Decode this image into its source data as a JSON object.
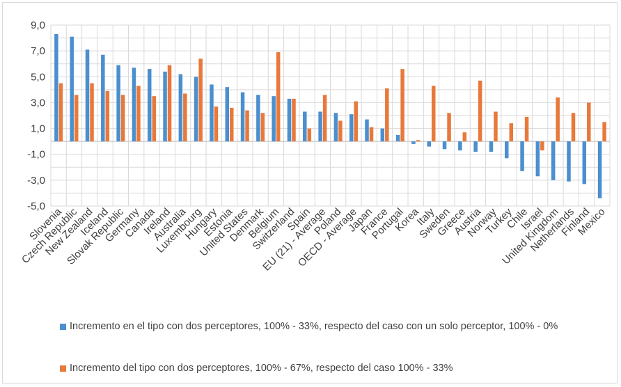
{
  "chart_data": {
    "type": "bar",
    "title": "",
    "xlabel": "",
    "ylabel": "",
    "ylim": [
      -5,
      9
    ],
    "yticks": [
      "9,0",
      "7,0",
      "5,0",
      "3,0",
      "1,0",
      "-1,0",
      "-3,0",
      "-5,0"
    ],
    "grid": true,
    "legend_position": "bottom",
    "categories": [
      "Slovenia",
      "Czech Republic",
      "New Zealand",
      "Iceland",
      "Slovak Republic",
      "Germany",
      "Canada",
      "Ireland",
      "Australia",
      "Luxembourg",
      "Hungary",
      "Estonia",
      "United States",
      "Denmark",
      "Belgium",
      "Switzerland",
      "Spain",
      "EU (21) - Average",
      "Poland",
      "OECD - Average",
      "Japan",
      "France",
      "Portugal",
      "Korea",
      "Italy",
      "Sweden",
      "Greece",
      "Austria",
      "Norway",
      "Turkey",
      "Chile",
      "Israel",
      "United Kingdom",
      "Netherlands",
      "Finland",
      "Mexico"
    ],
    "series": [
      {
        "name": "Incremento en el tipo con dos perceptores, 100% - 33%, respecto del caso con un solo perceptor, 100% - 0%",
        "color": "#4b8fcf",
        "values": [
          8.3,
          8.1,
          7.1,
          6.7,
          5.9,
          5.7,
          5.6,
          5.4,
          5.2,
          5.0,
          4.4,
          4.2,
          3.8,
          3.6,
          3.5,
          3.3,
          2.3,
          2.3,
          2.2,
          2.1,
          1.7,
          1.0,
          0.5,
          -0.2,
          -0.4,
          -0.6,
          -0.7,
          -0.8,
          -0.8,
          -1.3,
          -2.3,
          -2.7,
          -3.0,
          -3.1,
          -3.3,
          -4.4
        ]
      },
      {
        "name": "Incremento del tipo con dos perceptores, 100% - 67%, respecto del caso 100% - 33%",
        "color": "#e8793b",
        "values": [
          4.5,
          3.6,
          4.5,
          3.9,
          3.6,
          4.3,
          3.5,
          5.9,
          3.7,
          6.4,
          2.7,
          2.6,
          2.4,
          2.2,
          6.9,
          3.3,
          1.0,
          3.6,
          1.6,
          3.1,
          1.1,
          4.1,
          5.6,
          0.1,
          4.3,
          2.2,
          0.7,
          4.7,
          2.3,
          1.4,
          1.9,
          -0.7,
          3.4,
          2.2,
          3.0,
          1.5
        ]
      }
    ]
  }
}
